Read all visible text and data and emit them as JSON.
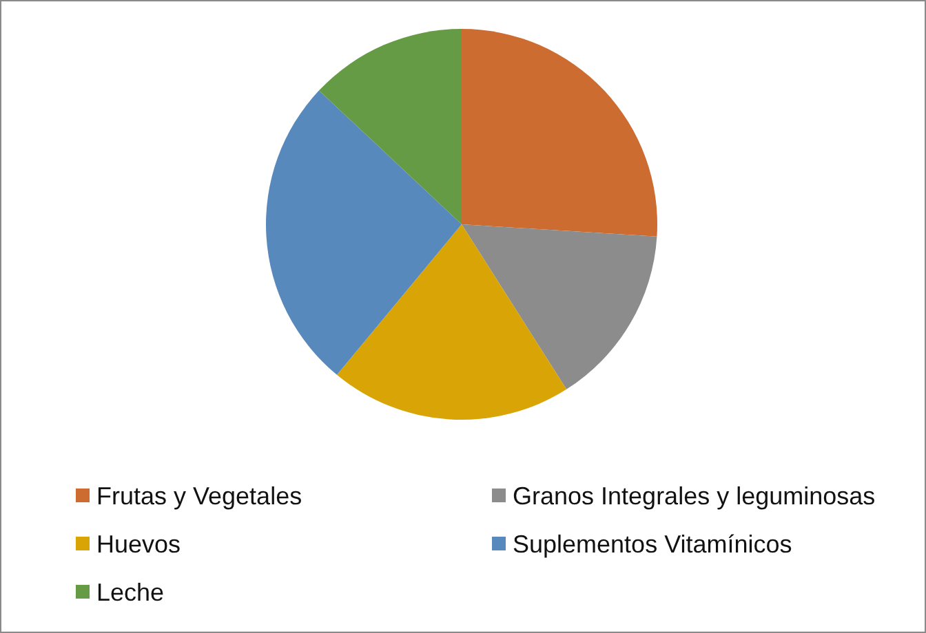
{
  "chart_data": {
    "type": "pie",
    "categories": [
      "Frutas y Vegetales",
      "Granos Integrales y leguminosas",
      "Huevos",
      "Suplementos Vitamínicos",
      "Leche"
    ],
    "values": [
      26,
      15,
      20,
      26,
      13
    ],
    "colors": [
      "#cc6c30",
      "#8c8c8c",
      "#d9a406",
      "#5889bd",
      "#659b45"
    ],
    "legend": "bottom"
  }
}
